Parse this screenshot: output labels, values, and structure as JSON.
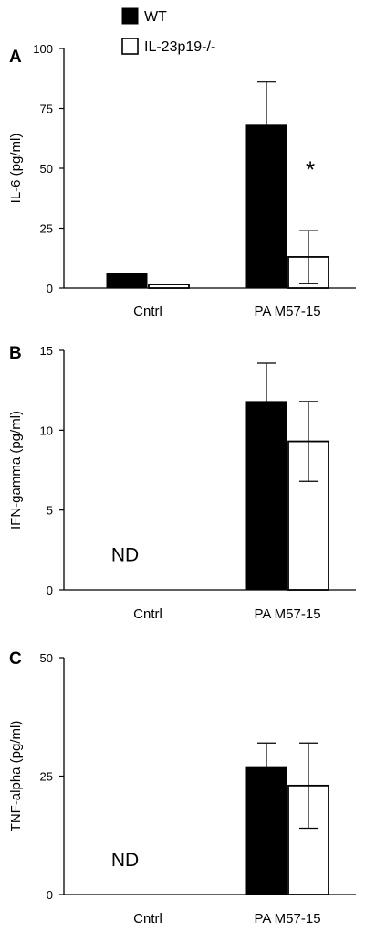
{
  "legend": {
    "placement": "top-center",
    "entries": [
      {
        "label": "WT",
        "fill": "#000000"
      },
      {
        "label": "IL-23p19-/-",
        "fill": "#ffffff"
      }
    ]
  },
  "chart_data": [
    {
      "type": "bar",
      "panel": "A",
      "ylabel": "IL-6 (pg/ml)",
      "ylim": [
        0,
        100
      ],
      "yticks": [
        0,
        25,
        50,
        75,
        100
      ],
      "categories": [
        "Cntrl",
        "PA M57-15"
      ],
      "series": [
        {
          "name": "WT",
          "values": [
            6,
            68
          ],
          "errors": [
            null,
            18
          ]
        },
        {
          "name": "IL-23p19-/-",
          "values": [
            1.5,
            13
          ],
          "errors": [
            null,
            11
          ]
        }
      ],
      "annotations": [
        {
          "text": "*",
          "category": "PA M57-15",
          "series": "IL-23p19-/-"
        }
      ]
    },
    {
      "type": "bar",
      "panel": "B",
      "ylabel": "IFN-gamma (pg/ml)",
      "ylim": [
        0,
        15
      ],
      "yticks": [
        0,
        5,
        10,
        15
      ],
      "categories": [
        "Cntrl",
        "PA M57-15"
      ],
      "series": [
        {
          "name": "WT",
          "values": [
            null,
            11.8
          ],
          "errors": [
            null,
            2.4
          ]
        },
        {
          "name": "IL-23p19-/-",
          "values": [
            null,
            9.3
          ],
          "errors": [
            null,
            2.5
          ]
        }
      ],
      "annotations": [
        {
          "text": "ND",
          "category": "Cntrl"
        }
      ]
    },
    {
      "type": "bar",
      "panel": "C",
      "ylabel": "TNF-alpha (pg/ml)",
      "ylim": [
        0,
        50
      ],
      "yticks": [
        0,
        25,
        50
      ],
      "categories": [
        "Cntrl",
        "PA M57-15"
      ],
      "series": [
        {
          "name": "WT",
          "values": [
            null,
            27
          ],
          "errors": [
            null,
            5
          ]
        },
        {
          "name": "IL-23p19-/-",
          "values": [
            null,
            23
          ],
          "errors": [
            null,
            9
          ]
        }
      ],
      "annotations": [
        {
          "text": "ND",
          "category": "Cntrl"
        }
      ]
    }
  ]
}
